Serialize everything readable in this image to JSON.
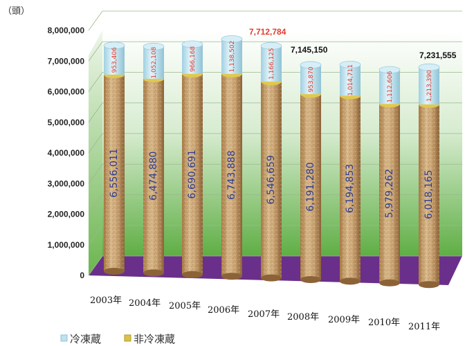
{
  "chart_data": {
    "type": "bar",
    "stacked": true,
    "unit_label": "（頭）",
    "categories": [
      "2003年",
      "2004年",
      "2005年",
      "2006年",
      "2007年",
      "2008年",
      "2009年",
      "2010年",
      "2011年"
    ],
    "series": [
      {
        "name": "非冷凍蔵",
        "color": "#c9a06a",
        "values": [
          6556011,
          6474880,
          6690691,
          6743888,
          6546659,
          6191280,
          6194853,
          5979262,
          6018165
        ],
        "labels": [
          "6,556,011",
          "6,474,880",
          "6,690,691",
          "6,743,888",
          "6,546,659",
          "6,191,280",
          "6,194,853",
          "5,979,262",
          "6,018,165"
        ]
      },
      {
        "name": "冷凍蔵",
        "color": "#bfe2ef",
        "values": [
          953406,
          1052108,
          966168,
          1138502,
          1166125,
          953870,
          1014711,
          1112606,
          1213390
        ],
        "labels": [
          "953,406",
          "1,052,108",
          "966,168",
          "1,138,502",
          "1,166,125",
          "953,870",
          "1,014,711",
          "1,112,606",
          "1,213,390"
        ]
      }
    ],
    "totals": [
      {
        "index": 4,
        "label": "7,712,784",
        "color": "#e23b2e"
      },
      {
        "index": 5,
        "label": "7,145,150",
        "color": "#111111"
      },
      {
        "index": 8,
        "label": "7,231,555",
        "color": "#111111"
      }
    ],
    "y_ticks": [
      {
        "v": 0,
        "label": "0"
      },
      {
        "v": 1000000,
        "label": "1,000,000"
      },
      {
        "v": 2000000,
        "label": "2,000,000"
      },
      {
        "v": 3000000,
        "label": "3,000,000"
      },
      {
        "v": 4000000,
        "label": "4,000,000"
      },
      {
        "v": 5000000,
        "label": "5,000,000"
      },
      {
        "v": 6000000,
        "label": "6,000,000"
      },
      {
        "v": 7000000,
        "label": "7,000,000"
      },
      {
        "v": 8000000,
        "label": "8,000,000"
      }
    ],
    "ylim": [
      0,
      8000000
    ],
    "grid": true,
    "legend": "bottom-left",
    "colors": {
      "background_top": "#ffffff",
      "background_bottom": "#5fae45",
      "floor": "#6a2f8a",
      "accent_red": "#e23b2e"
    }
  }
}
